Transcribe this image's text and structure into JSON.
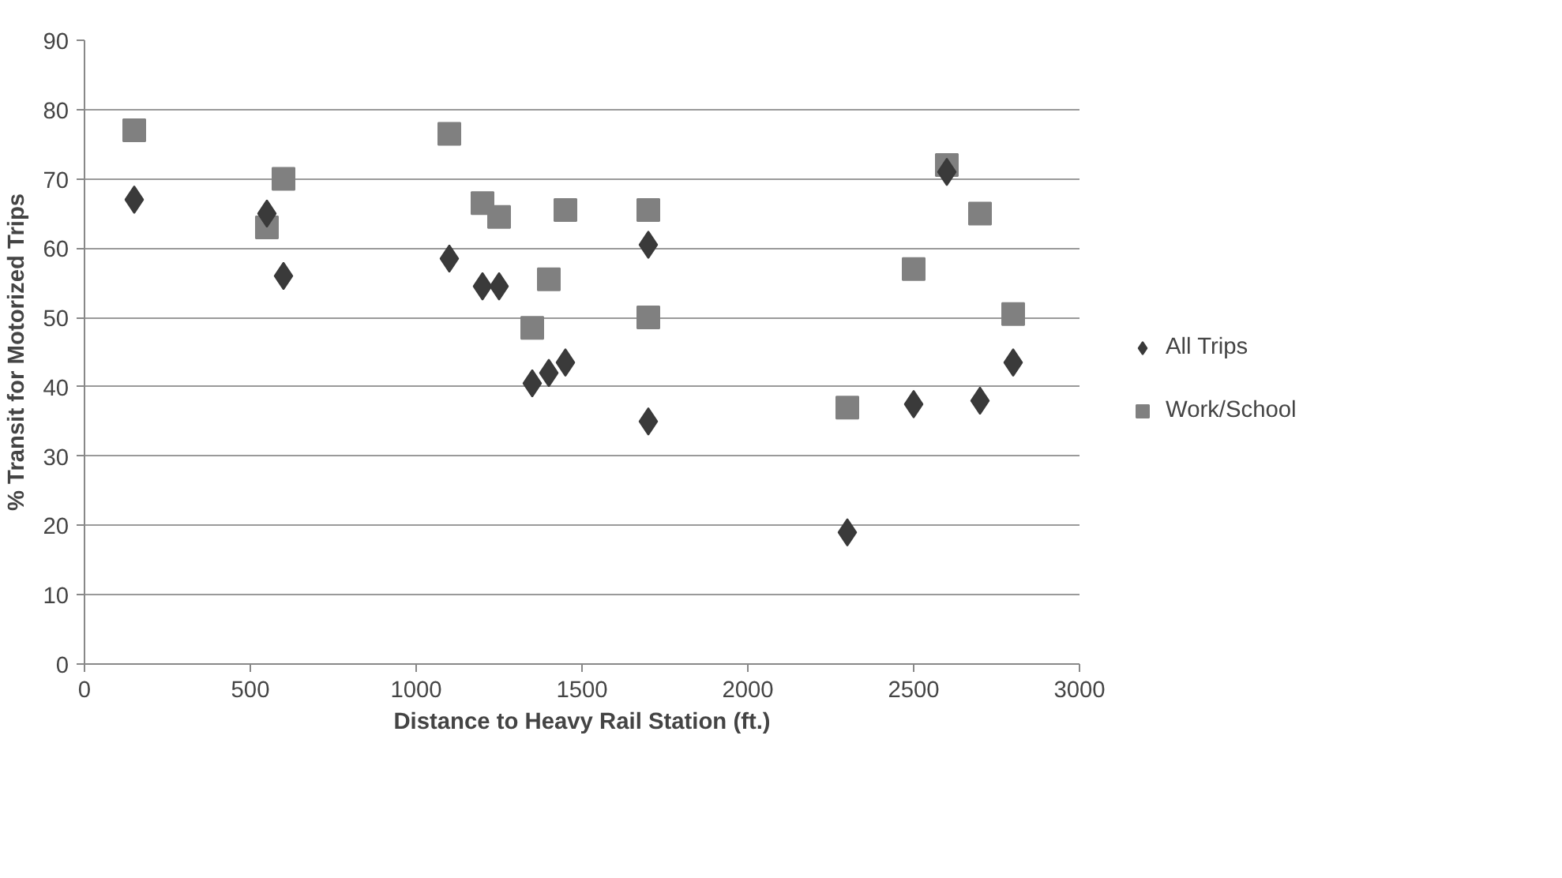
{
  "chart_data": {
    "type": "scatter",
    "xlabel": "Distance to Heavy Rail Station (ft.)",
    "ylabel": "% Transit for Motorized Trips",
    "xlim": [
      0,
      3000
    ],
    "xticks": [
      0,
      500,
      1000,
      1500,
      2000,
      2500,
      3000
    ],
    "ylim": [
      0,
      90
    ],
    "yticks": [
      0,
      10,
      20,
      30,
      40,
      50,
      60,
      70,
      80,
      90
    ],
    "grid": "y",
    "legend": "right",
    "series": [
      {
        "name": "All Trips",
        "color": "#3a3a3a",
        "marker": "diamond",
        "x": [
          150,
          550,
          600,
          1100,
          1200,
          1250,
          1350,
          1400,
          1450,
          1700,
          1700,
          2300,
          2500,
          2600,
          2700,
          2800
        ],
        "values": [
          67,
          65,
          56,
          58.5,
          54.5,
          54.5,
          40.5,
          42,
          43.5,
          60.5,
          35,
          19,
          37.5,
          71,
          38,
          43.5
        ]
      },
      {
        "name": "Work/School",
        "color": "#808080",
        "marker": "square",
        "x": [
          150,
          550,
          600,
          1100,
          1200,
          1250,
          1350,
          1400,
          1450,
          1700,
          1700,
          2300,
          2500,
          2600,
          2700,
          2800
        ],
        "values": [
          77,
          63,
          70,
          76.5,
          66.5,
          64.5,
          48.5,
          55.5,
          65.5,
          65.5,
          50,
          37,
          57,
          72,
          65,
          50.5
        ]
      }
    ]
  }
}
